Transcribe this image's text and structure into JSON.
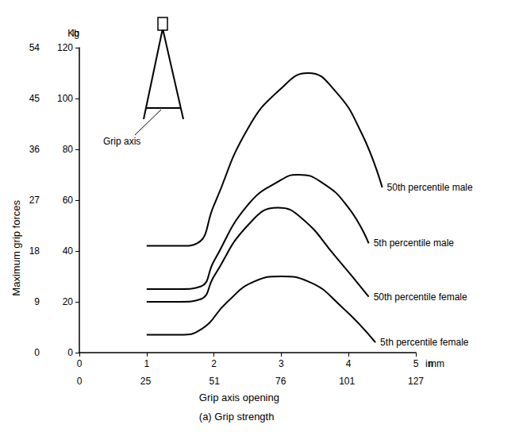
{
  "chart_data": {
    "type": "line",
    "title": "(a) Grip strength",
    "xlabel": "Grip axis opening",
    "ylabel": "Maximum grip forces",
    "x_units": "in",
    "x2_units": "mm",
    "y_units": "lb",
    "y2_units": "Kg",
    "annotation": "Grip axis",
    "xlim": [
      0,
      5
    ],
    "xticks": [
      0,
      1,
      2,
      3,
      4,
      5
    ],
    "x2lim": [
      0,
      127
    ],
    "x2ticks": [
      0,
      25,
      51,
      76,
      101,
      127
    ],
    "ylim": [
      0,
      120
    ],
    "yticks": [
      0,
      20,
      40,
      60,
      80,
      100,
      120
    ],
    "y2lim": [
      0,
      54
    ],
    "y2ticks": [
      0,
      9,
      18,
      27,
      36,
      45,
      54
    ],
    "grid": false,
    "series": [
      {
        "name": "50th percentile male",
        "color": "#000000",
        "x": [
          1,
          1.5,
          1.75,
          2,
          2.5,
          3,
          3.4,
          3.8,
          4.2,
          4.5
        ],
        "values": [
          42,
          42,
          43,
          58,
          88,
          104,
          110,
          103,
          86,
          65
        ]
      },
      {
        "name": "5th percentile male",
        "color": "#000000",
        "x": [
          1,
          1.5,
          1.8,
          2,
          2.5,
          3,
          3.25,
          3.6,
          4,
          4.3
        ],
        "values": [
          25,
          25,
          26,
          36,
          58,
          68,
          70,
          67,
          57,
          43
        ]
      },
      {
        "name": "50th percentile female",
        "color": "#000000",
        "x": [
          1,
          1.5,
          1.8,
          2,
          2.5,
          2.95,
          3.3,
          3.8,
          4.3
        ],
        "values": [
          20,
          20,
          21,
          30,
          50,
          57,
          53,
          38,
          22
        ]
      },
      {
        "name": "5th percentile female",
        "color": "#000000",
        "x": [
          1,
          1.5,
          1.8,
          2.2,
          2.6,
          3,
          3.4,
          3.9,
          4.4
        ],
        "values": [
          7,
          7,
          9,
          20,
          28,
          30,
          28,
          18,
          4
        ]
      }
    ]
  }
}
